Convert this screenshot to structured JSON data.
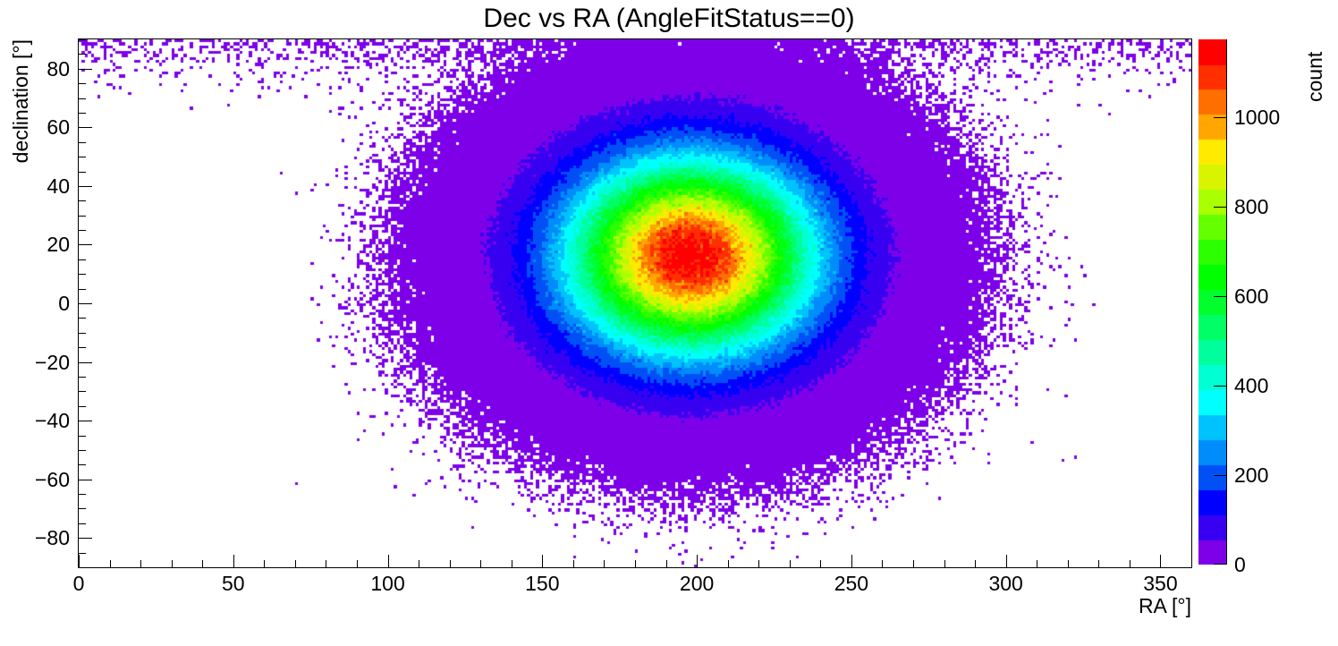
{
  "title": "Dec vs RA (AngleFitStatus==0)",
  "chart_data": {
    "type": "heatmap",
    "title": "Dec vs RA (AngleFitStatus==0)",
    "xlabel": "RA [°]",
    "ylabel": "declination [°]",
    "zlabel": "count",
    "x_range": [
      0,
      360
    ],
    "y_range": [
      -90,
      90
    ],
    "z_range": [
      0,
      1174
    ],
    "bin_size_deg": 1,
    "grid": false,
    "legend_position": "right-colorbar",
    "x_ticks": [
      {
        "v": 0,
        "label": "0"
      },
      {
        "v": 50,
        "label": "50"
      },
      {
        "v": 100,
        "label": "100"
      },
      {
        "v": 150,
        "label": "150"
      },
      {
        "v": 200,
        "label": "200"
      },
      {
        "v": 250,
        "label": "250"
      },
      {
        "v": 300,
        "label": "300"
      },
      {
        "v": 350,
        "label": "350"
      }
    ],
    "x_minor_step": 10,
    "y_ticks": [
      {
        "v": 80,
        "label": "80"
      },
      {
        "v": 60,
        "label": "60"
      },
      {
        "v": 40,
        "label": "40"
      },
      {
        "v": 20,
        "label": "20"
      },
      {
        "v": 0,
        "label": "0"
      },
      {
        "v": -20,
        "label": "−20"
      },
      {
        "v": -40,
        "label": "−40"
      },
      {
        "v": -60,
        "label": "−60"
      },
      {
        "v": -80,
        "label": "−80"
      }
    ],
    "y_minor_step": 5,
    "z_ticks": [
      {
        "v": 0,
        "label": "0"
      },
      {
        "v": 200,
        "label": "200"
      },
      {
        "v": 400,
        "label": "400"
      },
      {
        "v": 600,
        "label": "600"
      },
      {
        "v": 800,
        "label": "800"
      },
      {
        "v": 1000,
        "label": "1000"
      }
    ],
    "n_contours": 21,
    "palette": [
      "#7d00e9",
      "#3800f0",
      "#0000ff",
      "#0050f6",
      "#008cfa",
      "#00c2fd",
      "#00ffff",
      "#00ffd2",
      "#00ff9c",
      "#00ff66",
      "#00ff2b",
      "#00ff00",
      "#2bff00",
      "#66ff00",
      "#aaff00",
      "#d8f400",
      "#ffea00",
      "#ffa600",
      "#ff6f00",
      "#ff2f00",
      "#fe0000"
    ],
    "distribution": {
      "model": "gaussian2d_plus_polar_cap_poisson",
      "center_ra_deg": 198,
      "center_dec_deg": 16,
      "sigma_ra_deg": 26.5,
      "sigma_dec_deg": 22,
      "peak_count": 1174,
      "cap_dec_start_deg": 55,
      "cap_amplitude": 0.75,
      "cap_width_deg": 35,
      "cap_power": 4,
      "cap_ra_taper_sigma_deg": 130,
      "seed": 42
    },
    "frame_color": "#000000",
    "background_color": "#ffffff",
    "empty_bin_color": "#ffffff"
  }
}
